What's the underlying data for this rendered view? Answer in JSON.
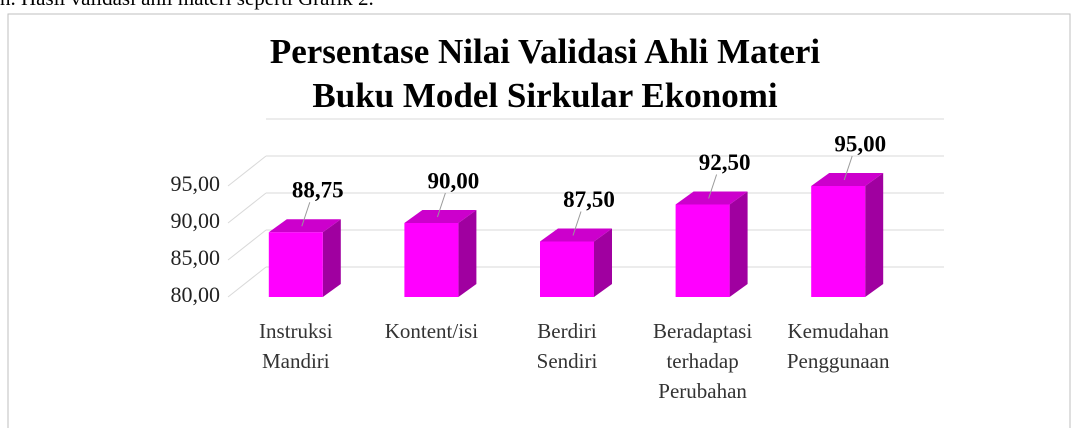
{
  "context_text": "n. Hasil validasi ahli materi seperti Grafik 2.",
  "chart_data": {
    "type": "bar3d",
    "title": [
      "Persentase Nilai Validasi Ahli Materi",
      "Buku Model Sirkular Ekonomi"
    ],
    "categories": [
      "Instruksi\nMandiri",
      "Kontent/isi",
      "Berdiri\nSendiri",
      "Beradaptasi\nterhadap\nPerubahan",
      "Kemudahan\nPenggunaan"
    ],
    "values": [
      88.75,
      90,
      87.5,
      92.5,
      95
    ],
    "value_labels": [
      "88,75",
      "90,00",
      "87,50",
      "92,50",
      "95,00"
    ],
    "color": "#ff00ff",
    "ylim": [
      80,
      100
    ],
    "yticks": [
      {
        "value": 80,
        "label": "80,00"
      },
      {
        "value": 85,
        "label": "85,00"
      },
      {
        "value": 90,
        "label": "90,00"
      },
      {
        "value": 95,
        "label": "95,00"
      }
    ],
    "grid": true
  }
}
